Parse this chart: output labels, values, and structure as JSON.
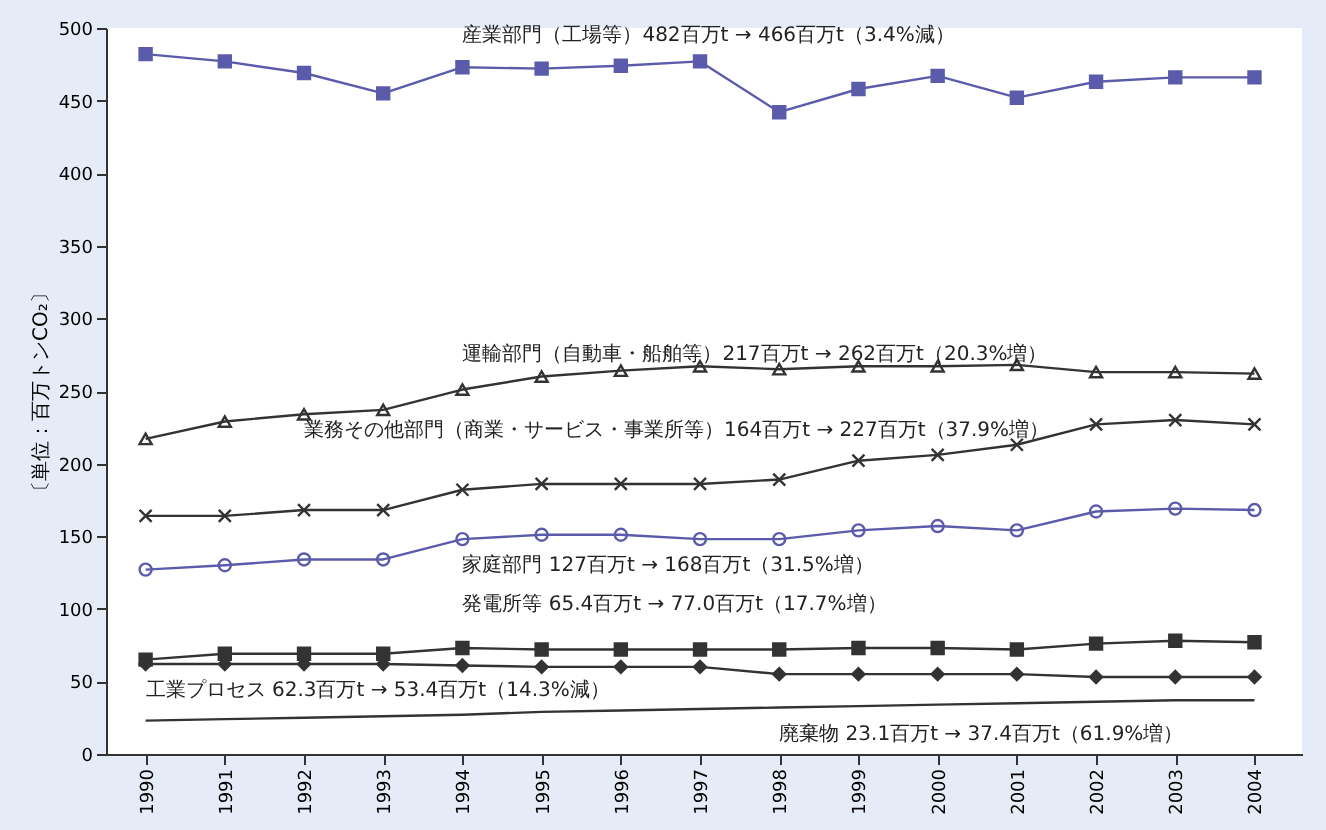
{
  "chart_data": {
    "type": "line",
    "ylabel": "〔単位：百万トンCO₂〕",
    "x": [
      1990,
      1991,
      1992,
      1993,
      1994,
      1995,
      1996,
      1997,
      1998,
      1999,
      2000,
      2001,
      2002,
      2003,
      2004
    ],
    "series": [
      {
        "name": "産業部門（工場等）482百万t → 466百万t（3.4%減）",
        "color": "#5b5bab",
        "marker": "square",
        "values": [
          482,
          477,
          469,
          455,
          473,
          472,
          474,
          477,
          442,
          458,
          467,
          452,
          463,
          466,
          466
        ]
      },
      {
        "name": "運輸部門（自動車・船舶等）217百万t → 262百万t（20.3%増）",
        "color": "#333333",
        "marker": "triangle",
        "values": [
          217,
          229,
          234,
          237,
          251,
          260,
          264,
          267,
          265,
          267,
          267,
          268,
          263,
          263,
          262
        ]
      },
      {
        "name": "業務その他部門（商業・サービス・事業所等）164百万t → 227百万t（37.9%増）",
        "color": "#333333",
        "marker": "cross",
        "values": [
          164,
          164,
          168,
          168,
          182,
          186,
          186,
          186,
          189,
          202,
          206,
          213,
          227,
          230,
          227
        ]
      },
      {
        "name": "家庭部門 127百万t → 168百万t（31.5%増）",
        "color": "#5b5bab",
        "marker": "circle",
        "values": [
          127,
          130,
          134,
          134,
          148,
          151,
          151,
          148,
          148,
          154,
          157,
          154,
          167,
          169,
          168
        ]
      },
      {
        "name": "発電所等 65.4百万t → 77.0百万t（17.7%増）",
        "color": "#333333",
        "marker": "square",
        "values": [
          65,
          69,
          69,
          69,
          73,
          72,
          72,
          72,
          72,
          73,
          73,
          72,
          76,
          78,
          77
        ]
      },
      {
        "name": "工業プロセス 62.3百万t → 53.4百万t（14.3%減）",
        "color": "#333333",
        "marker": "diamond",
        "values": [
          62,
          62,
          62,
          62,
          61,
          60,
          60,
          60,
          55,
          55,
          55,
          55,
          53,
          53,
          53
        ]
      },
      {
        "name": "廃棄物 23.1百万t → 37.4百万t（61.9%増）",
        "color": "#333333",
        "marker": "none",
        "values": [
          23,
          24,
          25,
          26,
          27,
          29,
          30,
          31,
          32,
          33,
          34,
          35,
          36,
          37,
          37
        ]
      }
    ],
    "xlim": [
      1989.5,
      2004.6
    ],
    "xticks": [
      1990,
      1991,
      1992,
      1993,
      1994,
      1995,
      1996,
      1997,
      1998,
      1999,
      2000,
      2001,
      2002,
      2003,
      2004
    ],
    "ylim": [
      0,
      500
    ],
    "yticks": [
      0,
      50,
      100,
      150,
      200,
      250,
      300,
      350,
      400,
      450,
      500
    ],
    "grid": false,
    "legend": false,
    "line_style": "solid"
  }
}
